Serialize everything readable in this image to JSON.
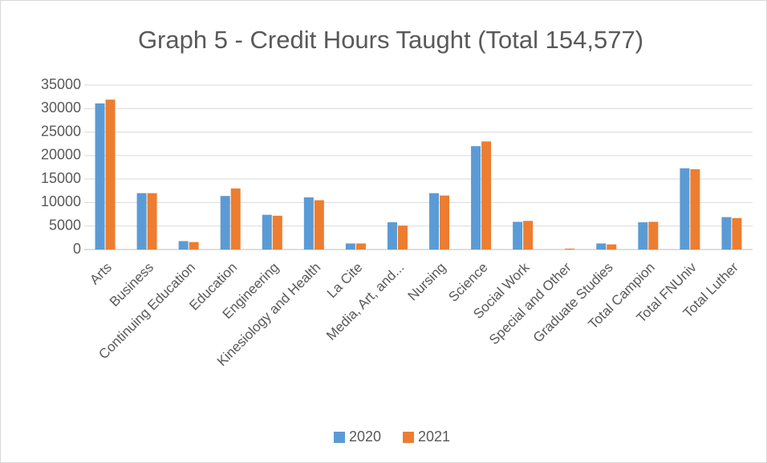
{
  "chart_data": {
    "type": "bar",
    "title": "Graph 5 - Credit Hours Taught (Total 154,577)",
    "categories": [
      "Arts",
      "Business",
      "Continuing Education",
      "Education",
      "Engineering",
      "Kinesiology and Health",
      "La Cite",
      "Media, Art, and...",
      "Nursing",
      "Science",
      "Social Work",
      "Special and Other",
      "Graduate Studies",
      "Total Campion",
      "Total FNUniv",
      "Total Luther"
    ],
    "series": [
      {
        "name": "2020",
        "color": "#5b9bd5",
        "values": [
          31100,
          12000,
          1800,
          11400,
          7400,
          11100,
          1300,
          5800,
          12000,
          22000,
          5900,
          0,
          1300,
          5800,
          17300,
          6900
        ]
      },
      {
        "name": "2021",
        "color": "#ed7d31",
        "values": [
          31900,
          12000,
          1600,
          13000,
          7200,
          10500,
          1300,
          5100,
          11500,
          23000,
          6100,
          200,
          1100,
          5900,
          17100,
          6700
        ]
      }
    ],
    "ylim": [
      0,
      35000
    ],
    "yticks": [
      0,
      5000,
      10000,
      15000,
      20000,
      25000,
      30000,
      35000
    ],
    "grid": true,
    "legend": "bottom"
  }
}
